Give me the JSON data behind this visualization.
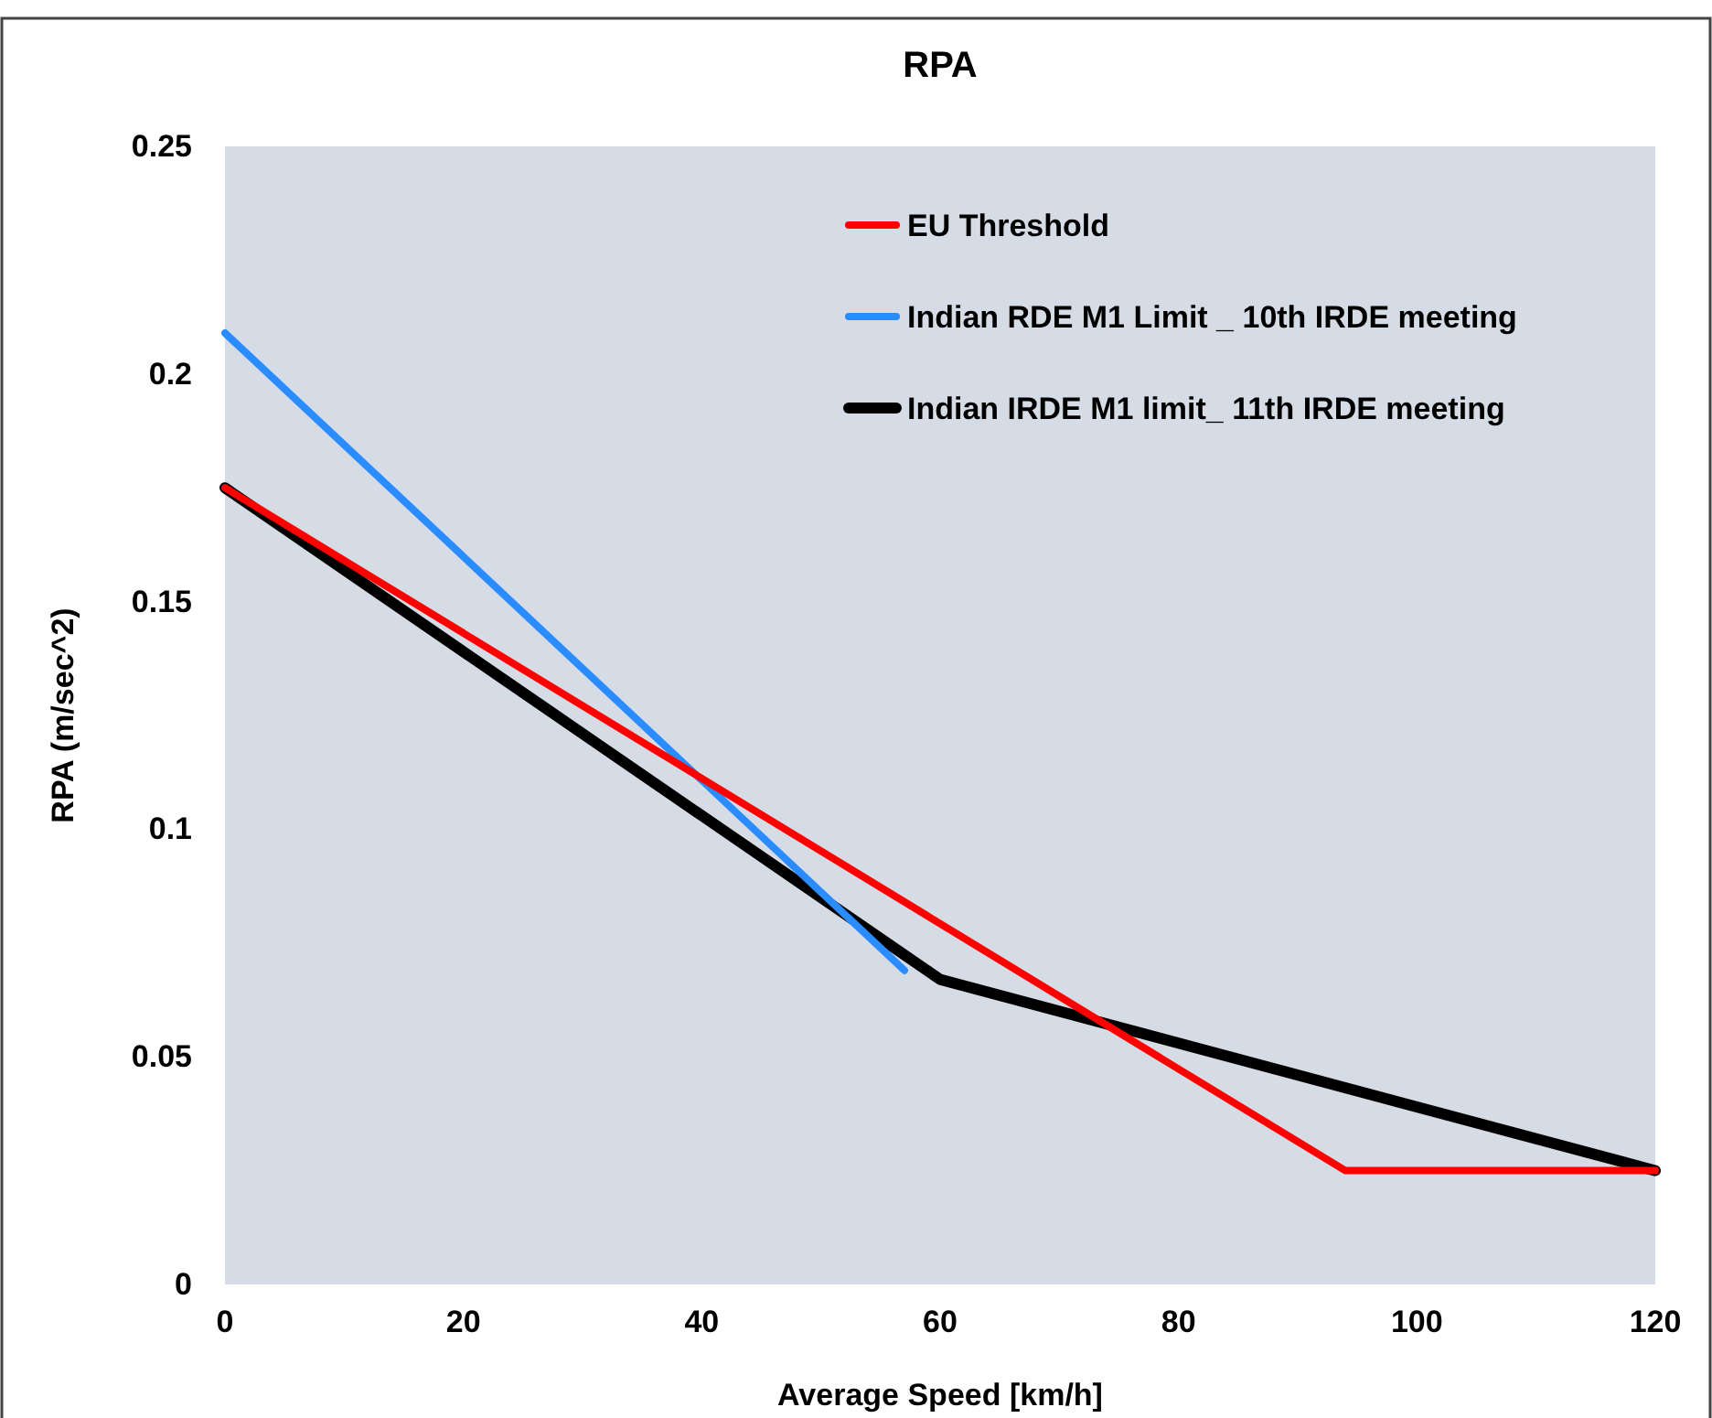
{
  "chart_data": {
    "type": "line",
    "title": "RPA",
    "xlabel": "Average Speed [km/h]",
    "ylabel": "RPA (m/sec^2)",
    "xlim": [
      0,
      120
    ],
    "xticks": [
      0,
      20,
      40,
      60,
      80,
      100,
      120
    ],
    "ylim": [
      0,
      0.25
    ],
    "yticks": [
      0,
      0.05,
      0.1,
      0.15,
      0.2,
      0.25
    ],
    "grid": false,
    "legend": "top right",
    "marker": "none",
    "line_style": "solid",
    "series": [
      {
        "name": "EU Threshold",
        "color": "#ff0000",
        "x": [
          0,
          94,
          120
        ],
        "values": [
          0.175,
          0.025,
          0.025
        ]
      },
      {
        "name": "Indian RDE M1 Limit _ 10th IRDE meeting",
        "color": "#2a8cff",
        "x": [
          0,
          57
        ],
        "values": [
          0.209,
          0.069
        ]
      },
      {
        "name": "Indian IRDE M1 limit_ 11th IRDE meeting",
        "color": "#000000",
        "x": [
          0,
          60,
          120
        ],
        "values": [
          0.175,
          0.067,
          0.025
        ]
      }
    ]
  }
}
